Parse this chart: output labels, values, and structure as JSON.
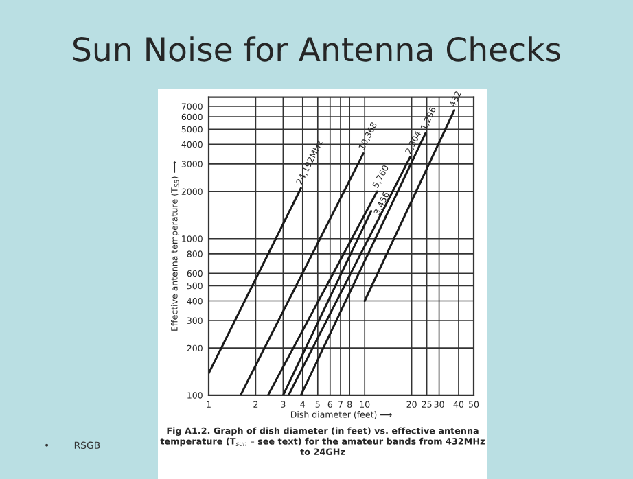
{
  "chart_data": {
    "type": "line",
    "title": "Sun Noise for Antenna Checks",
    "xlabel": "Dish diameter (feet) ⟶",
    "ylabel": "Effective antenna temperature (T$_{SB}$) ⟶",
    "log": "xy",
    "xlim": [
      1,
      50
    ],
    "ylim": [
      100,
      8000
    ],
    "xticks": [
      1,
      2,
      3,
      4,
      5,
      6,
      7,
      8,
      10,
      20,
      25,
      30,
      40,
      50
    ],
    "yticks": [
      100,
      200,
      300,
      400,
      500,
      600,
      800,
      1000,
      2000,
      3000,
      4000,
      5000,
      6000,
      7000
    ],
    "grid": true,
    "legend": false,
    "marker": "none",
    "line_style": "solid",
    "series": [
      {
        "name": "24,192MHz",
        "color": "#1a1a1a",
        "x": [
          1,
          3.9
        ],
        "values": [
          138,
          2100
        ]
      },
      {
        "name": "10,368",
        "color": "#1a1a1a",
        "x": [
          1.6,
          9.8
        ],
        "values": [
          100,
          3500
        ]
      },
      {
        "name": "5,760",
        "color": "#1a1a1a",
        "x": [
          2.4,
          12
        ],
        "values": [
          100,
          2000
        ]
      },
      {
        "name": "3,456",
        "color": "#1a1a1a",
        "x": [
          3.0,
          11
        ],
        "values": [
          100,
          1500
        ]
      },
      {
        "name": "2,304",
        "color": "#1a1a1a",
        "x": [
          3.25,
          19.5
        ],
        "values": [
          100,
          3300
        ]
      },
      {
        "name": "1,296",
        "color": "#1a1a1a",
        "x": [
          3.9,
          24.5
        ],
        "values": [
          100,
          4700
        ]
      },
      {
        "name": "432",
        "color": "#1a1a1a",
        "x": [
          10,
          37.5
        ],
        "values": [
          400,
          6600
        ]
      }
    ],
    "annotations": [
      "Fig A1.2. Graph of dish diameter (in feet) vs. effective antenna\ntemperature (T$_{sun}$ – see text) for the amateur bands from 432MHz\nto 24GHz",
      "•        RSGB"
    ]
  }
}
